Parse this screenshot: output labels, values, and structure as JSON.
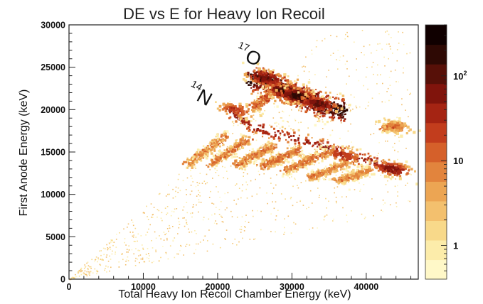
{
  "chart_data": {
    "type": "heatmap",
    "title": "DE vs E for Heavy Ion Recoil",
    "xlabel": "Total Heavy Ion Recoil Chamber Energy (keV)",
    "ylabel": "First Anode Energy (keV)",
    "xlim": [
      0,
      47000
    ],
    "ylim": [
      0,
      30000
    ],
    "x_ticks": [
      {
        "value": 0,
        "label": "0"
      },
      {
        "value": 10000,
        "label": "10000"
      },
      {
        "value": 20000,
        "label": "20000"
      },
      {
        "value": 30000,
        "label": "30000"
      },
      {
        "value": 40000,
        "label": "40000"
      }
    ],
    "y_ticks": [
      {
        "value": 0,
        "label": "0"
      },
      {
        "value": 5000,
        "label": "5000"
      },
      {
        "value": 10000,
        "label": "10000"
      },
      {
        "value": 15000,
        "label": "15000"
      },
      {
        "value": 20000,
        "label": "20000"
      },
      {
        "value": 25000,
        "label": "25000"
      },
      {
        "value": 30000,
        "label": "30000"
      }
    ],
    "colorbar": {
      "scale": "log",
      "range": [
        0.4,
        400
      ],
      "ticks": [
        {
          "value": 1,
          "label": "1"
        },
        {
          "value": 10,
          "label": "10"
        },
        {
          "value": 100,
          "label": "10",
          "sup": "2"
        }
      ],
      "colors": [
        "#fff8c8",
        "#fcecaa",
        "#f8d98a",
        "#f3c06e",
        "#eca553",
        "#e2843d",
        "#d5602a",
        "#c23d1d",
        "#a52413",
        "#80140c",
        "#571008",
        "#2e0904",
        "#100000"
      ]
    },
    "annotations": [
      {
        "text": "O",
        "superscript": "17",
        "x": 24800,
        "y": 25300
      },
      {
        "text": "N",
        "superscript": "14",
        "x": 18200,
        "y": 20600
      }
    ],
    "bands": [
      {
        "x": [
          24500,
          26000,
          28000,
          30000,
          32000,
          34000,
          36000,
          37000
        ],
        "y": [
          23500,
          23600,
          22600,
          21900,
          21200,
          20600,
          20100,
          19800
        ],
        "peak": 300,
        "width": 1700
      },
      {
        "x": [
          21500,
          24000,
          27000,
          30000,
          33000,
          36000,
          39000,
          42000,
          44000
        ],
        "y": [
          19800,
          18300,
          17300,
          16700,
          16000,
          15200,
          14300,
          13400,
          12900
        ],
        "peak": 60,
        "width": 1100
      },
      {
        "x": [
          25000,
          26800,
          28000
        ],
        "y": [
          20300,
          21600,
          23000
        ],
        "peak": 25,
        "width": 650
      },
      {
        "x": [
          16000,
          18500,
          21000
        ],
        "y": [
          13500,
          15200,
          16900
        ],
        "peak": 12,
        "width": 700
      },
      {
        "x": [
          19000,
          21500,
          24000
        ],
        "y": [
          13500,
          15000,
          16500
        ],
        "peak": 14,
        "width": 700
      },
      {
        "x": [
          22500,
          25000,
          27500
        ],
        "y": [
          13400,
          14600,
          15700
        ],
        "peak": 14,
        "width": 700
      },
      {
        "x": [
          26000,
          28500,
          31000
        ],
        "y": [
          13300,
          14300,
          15300
        ],
        "peak": 16,
        "width": 700
      },
      {
        "x": [
          29000,
          32000,
          35000
        ],
        "y": [
          12800,
          13900,
          15000
        ],
        "peak": 16,
        "width": 700
      },
      {
        "x": [
          32500,
          35000,
          37500
        ],
        "y": [
          12000,
          12800,
          13700
        ],
        "peak": 12,
        "width": 650
      },
      {
        "x": [
          36000,
          38500,
          40500
        ],
        "y": [
          11600,
          12200,
          12900
        ],
        "peak": 10,
        "width": 650
      },
      {
        "x": [
          42500,
          43500,
          44500
        ],
        "y": [
          17800,
          18000,
          18200
        ],
        "peak": 18,
        "width": 600
      }
    ],
    "hotspots": [
      {
        "x": 29500,
        "y": 22100,
        "value": 320
      },
      {
        "x": 31000,
        "y": 21500,
        "value": 260
      },
      {
        "x": 33500,
        "y": 20700,
        "value": 140
      },
      {
        "x": 26500,
        "y": 23700,
        "value": 120
      },
      {
        "x": 43500,
        "y": 13000,
        "value": 90
      },
      {
        "x": 37000,
        "y": 14600,
        "value": 45
      },
      {
        "x": 22500,
        "y": 19900,
        "value": 40
      },
      {
        "x": 44000,
        "y": 18000,
        "value": 12
      }
    ]
  }
}
